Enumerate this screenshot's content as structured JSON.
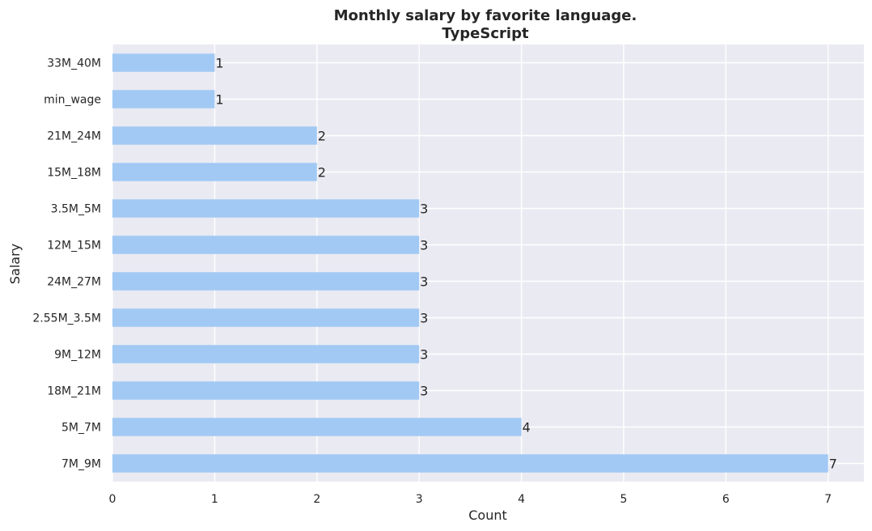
{
  "chart_data": {
    "type": "bar",
    "orientation": "horizontal",
    "title": [
      "Monthly salary by favorite language.",
      "TypeScript"
    ],
    "xlabel": "Count",
    "ylabel": "Salary",
    "categories": [
      "33M_40M",
      "min_wage",
      "21M_24M",
      "15M_18M",
      "3.5M_5M",
      "12M_15M",
      "24M_27M",
      "2.55M_3.5M",
      "9M_12M",
      "18M_21M",
      "5M_7M",
      "7M_9M"
    ],
    "values": [
      1,
      1,
      2,
      2,
      3,
      3,
      3,
      3,
      3,
      3,
      4,
      7
    ],
    "xlim": [
      0,
      7.35
    ],
    "xticks": [
      0,
      1,
      2,
      3,
      4,
      5,
      6,
      7
    ],
    "grid": true,
    "legend": "none",
    "colors": {
      "bar": "#a1c9f4",
      "plot_background": "#eaeaf2",
      "grid": "#ffffff",
      "text": "#262626"
    }
  }
}
